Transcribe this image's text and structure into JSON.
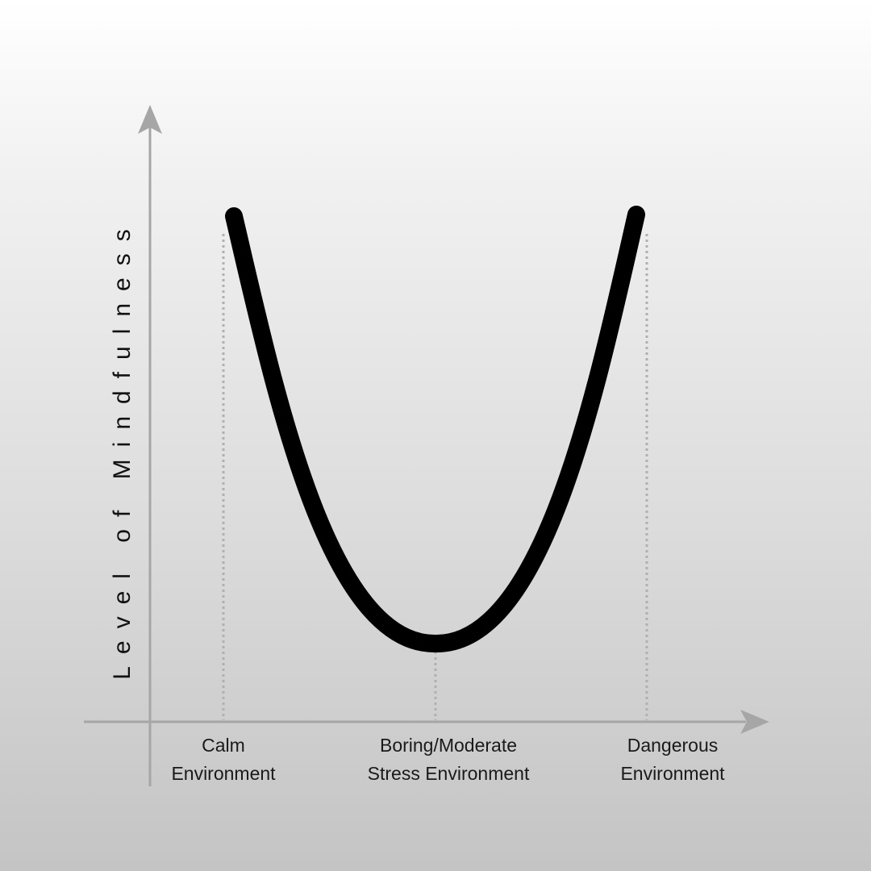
{
  "diagram": {
    "y_axis_label": "Level of Mindfulness",
    "categories": [
      {
        "line1": "Calm",
        "line2": "Environment"
      },
      {
        "line1": "Boring/Moderate",
        "line2": "Stress Environment"
      },
      {
        "line1": "Dangerous",
        "line2": "Environment"
      }
    ],
    "curve": "U-shaped",
    "colors": {
      "curve": "#000000",
      "axes": "#a6a6a6",
      "guides": "#b0b0b0"
    }
  }
}
